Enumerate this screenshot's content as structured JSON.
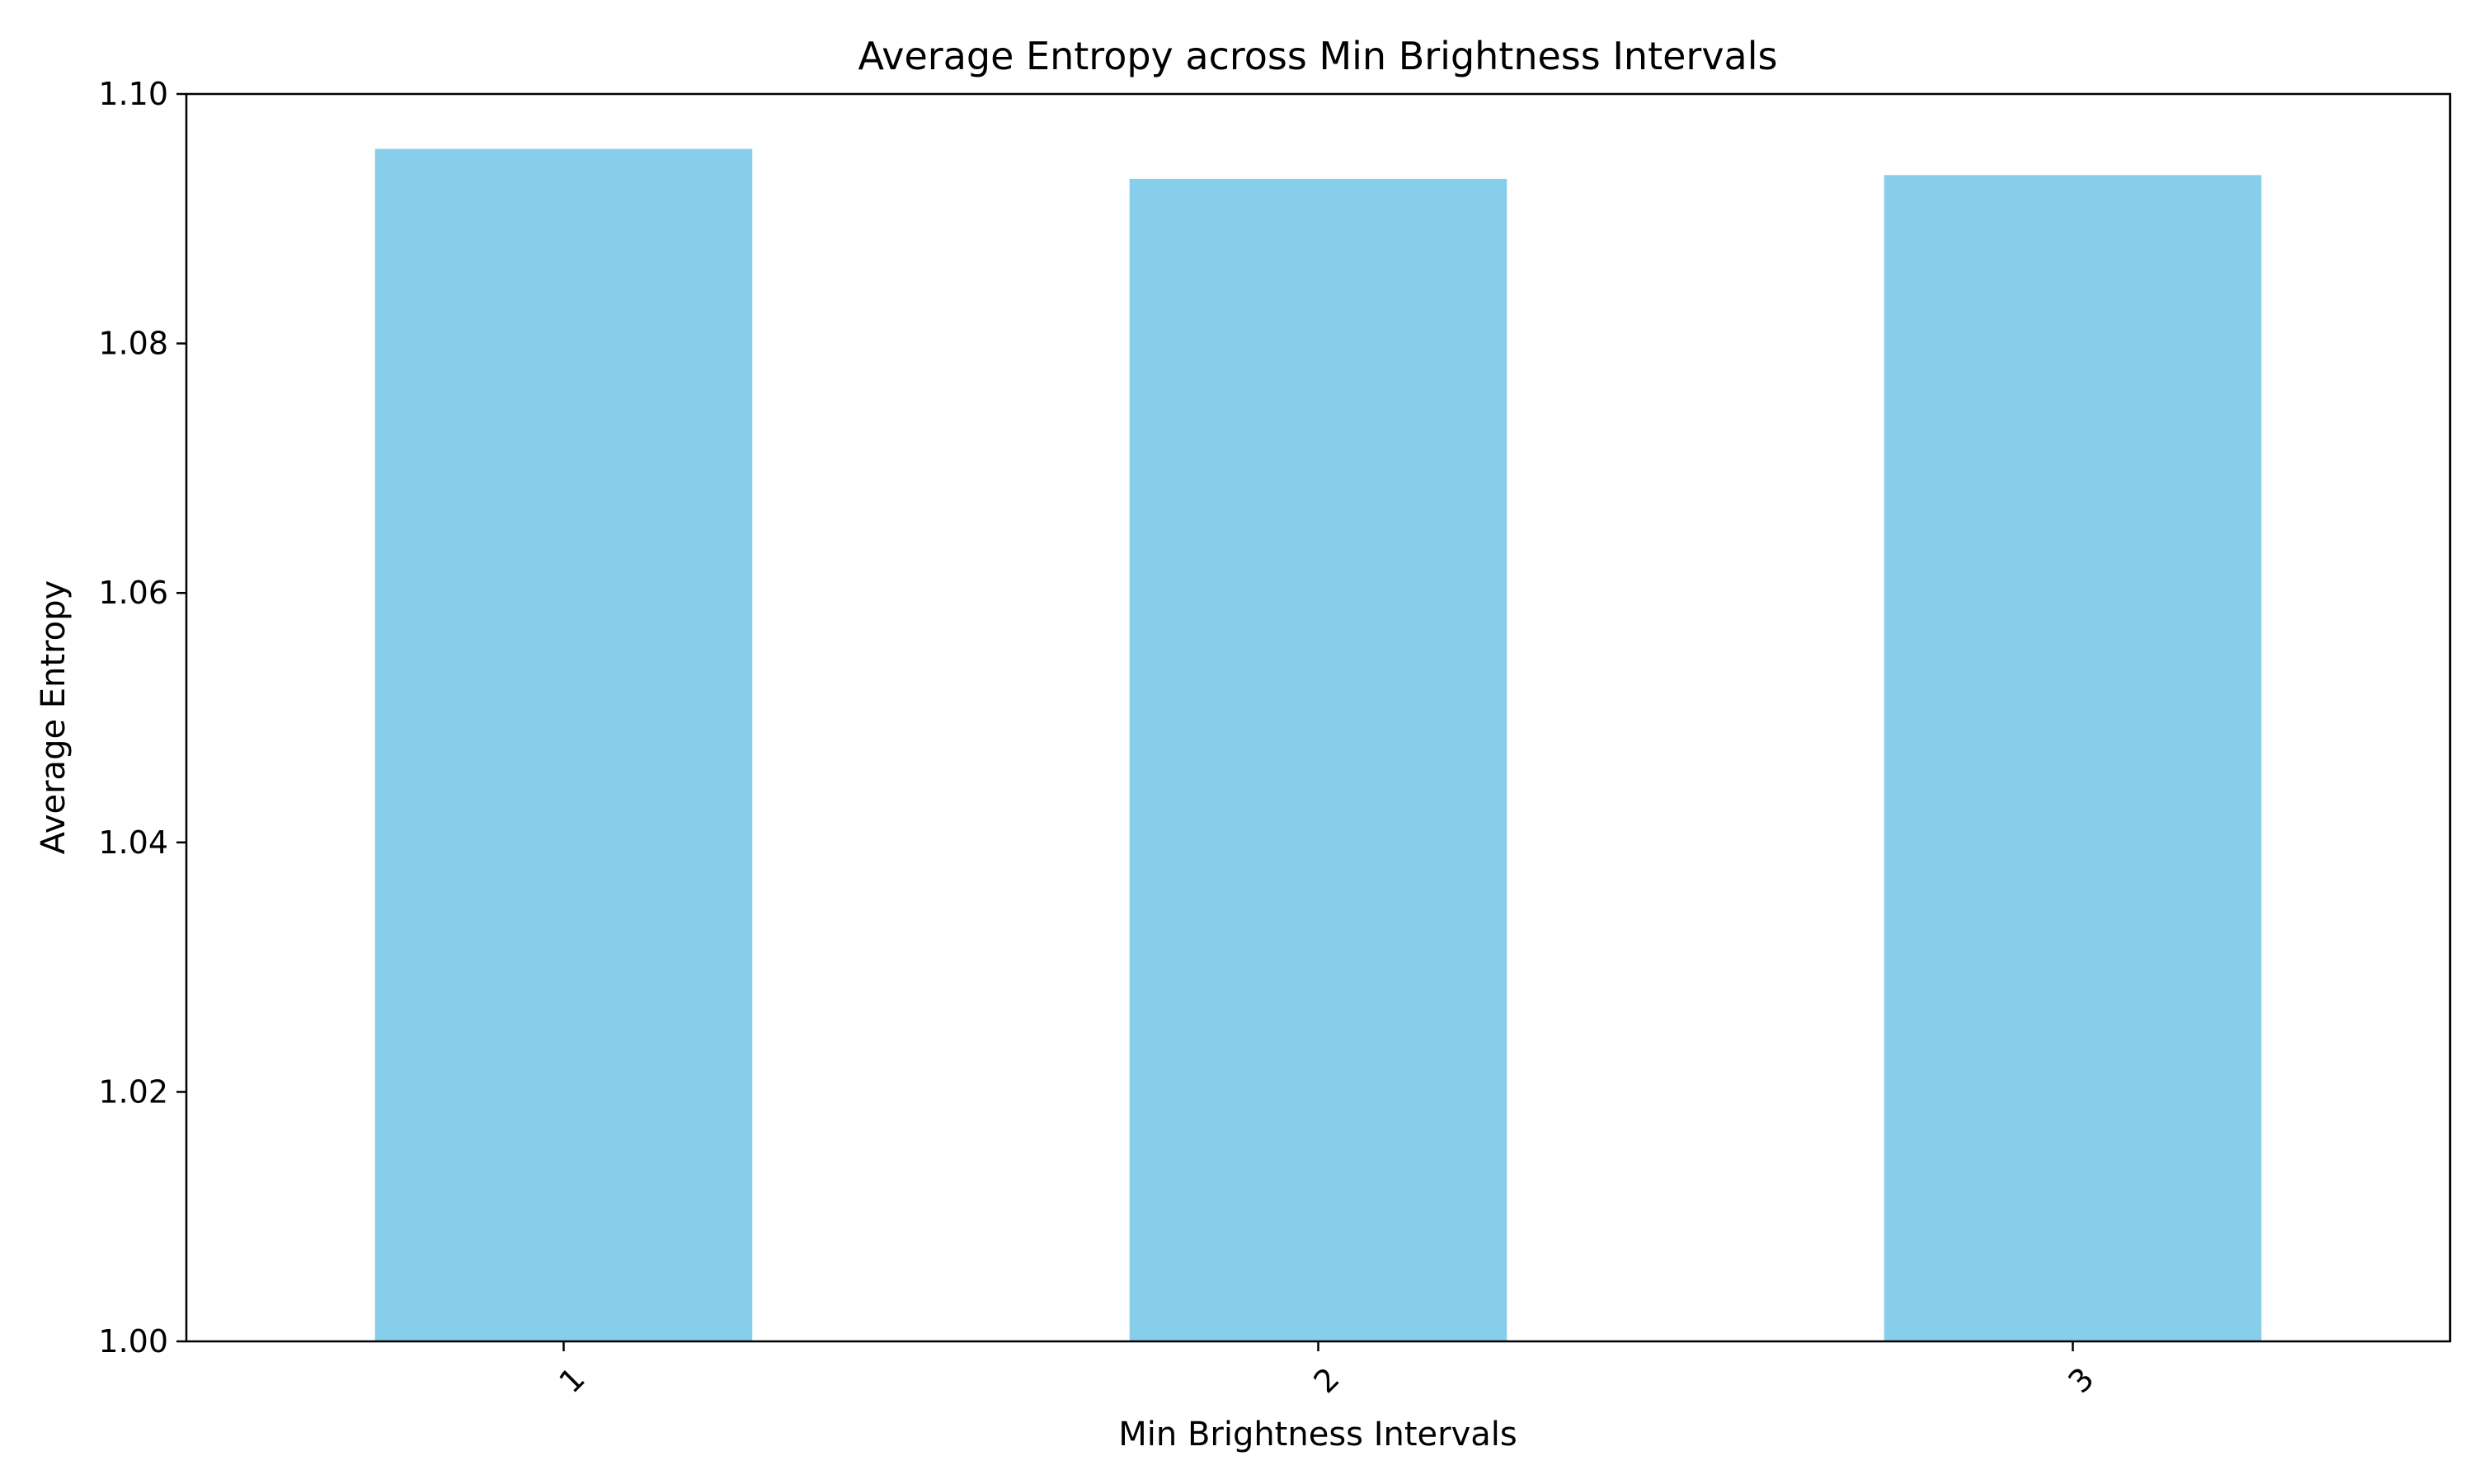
{
  "chart_data": {
    "type": "bar",
    "title": "Average Entropy across Min Brightness Intervals",
    "xlabel": "Min Brightness Intervals",
    "ylabel": "Average Entropy",
    "categories": [
      "1",
      "2",
      "3"
    ],
    "values": [
      1.0956,
      1.0932,
      1.0935
    ],
    "ylim": [
      1.0,
      1.1
    ],
    "yticks": [
      "1.00",
      "1.02",
      "1.04",
      "1.06",
      "1.08",
      "1.10"
    ],
    "xtick_rotation_deg": 45,
    "bar_color": "#87CEEB",
    "grid": false,
    "legend": "none"
  }
}
